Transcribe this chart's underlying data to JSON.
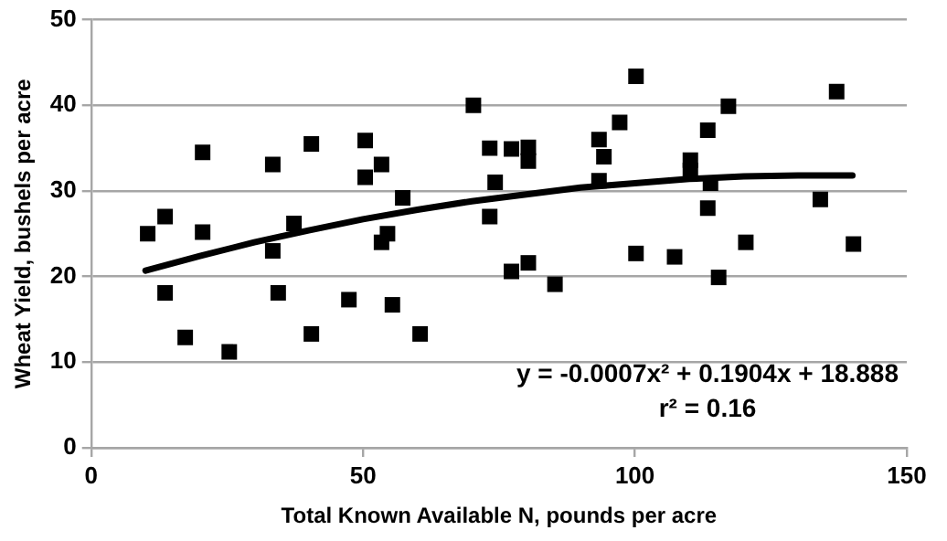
{
  "chart_data": {
    "type": "scatter",
    "xlabel": "Total Known Available N, pounds per acre",
    "ylabel": "Wheat Yield, bushels per acre",
    "xlim": [
      0,
      150
    ],
    "xticks": [
      0,
      50,
      100,
      150
    ],
    "ylim": [
      0,
      50
    ],
    "yticks": [
      0,
      10,
      20,
      30,
      40,
      50
    ],
    "grid": "y",
    "legend": false,
    "annotations": [
      "y = -0.0007x² + 0.1904x + 18.888",
      "r² = 0.16"
    ],
    "series": [
      {
        "color": "#000000",
        "marker": "square",
        "x": [
          10.4,
          13.6,
          20.5,
          20.5,
          13.6,
          17.3,
          25.4,
          33.4,
          33.4,
          34.4,
          37.3,
          40.5,
          40.5,
          47.4,
          50.4,
          50.4,
          53.4,
          53.4,
          54.5,
          55.4,
          57.3,
          60.5,
          70.3,
          73.3,
          74.3,
          73.3,
          77.3,
          77.3,
          80.4,
          80.4,
          80.4,
          85.3,
          93.4,
          94.3,
          93.4,
          97.2,
          100.2,
          100.2,
          107.3,
          110.2,
          110.2,
          113.4,
          113.9,
          113.4,
          115.4,
          117.2,
          120.4,
          134.1,
          137.1,
          140.2
        ],
        "values": [
          25.0,
          27.0,
          34.5,
          25.2,
          18.1,
          12.9,
          11.2,
          33.1,
          23.0,
          18.1,
          26.2,
          35.5,
          13.3,
          17.3,
          35.9,
          31.6,
          33.1,
          24.0,
          25.0,
          16.7,
          29.2,
          13.3,
          40.0,
          35.0,
          31.0,
          27.0,
          34.9,
          20.6,
          35.1,
          33.5,
          21.6,
          19.1,
          36.0,
          34.0,
          31.2,
          38.0,
          43.4,
          22.7,
          22.3,
          33.6,
          32.4,
          37.1,
          30.9,
          28.0,
          19.9,
          39.9,
          24.0,
          29.0,
          41.6,
          23.8
        ]
      },
      {
        "type": "line",
        "color": "#000000",
        "marker": "none",
        "line_style": "solid",
        "x": [
          10,
          20,
          30,
          40,
          50,
          60,
          70,
          80,
          90,
          100,
          110,
          120,
          130,
          140
        ],
        "values": [
          20.7,
          22.4,
          24.0,
          25.4,
          26.7,
          27.8,
          28.8,
          29.6,
          30.4,
          30.9,
          31.4,
          31.7,
          31.8,
          31.8
        ]
      }
    ]
  }
}
